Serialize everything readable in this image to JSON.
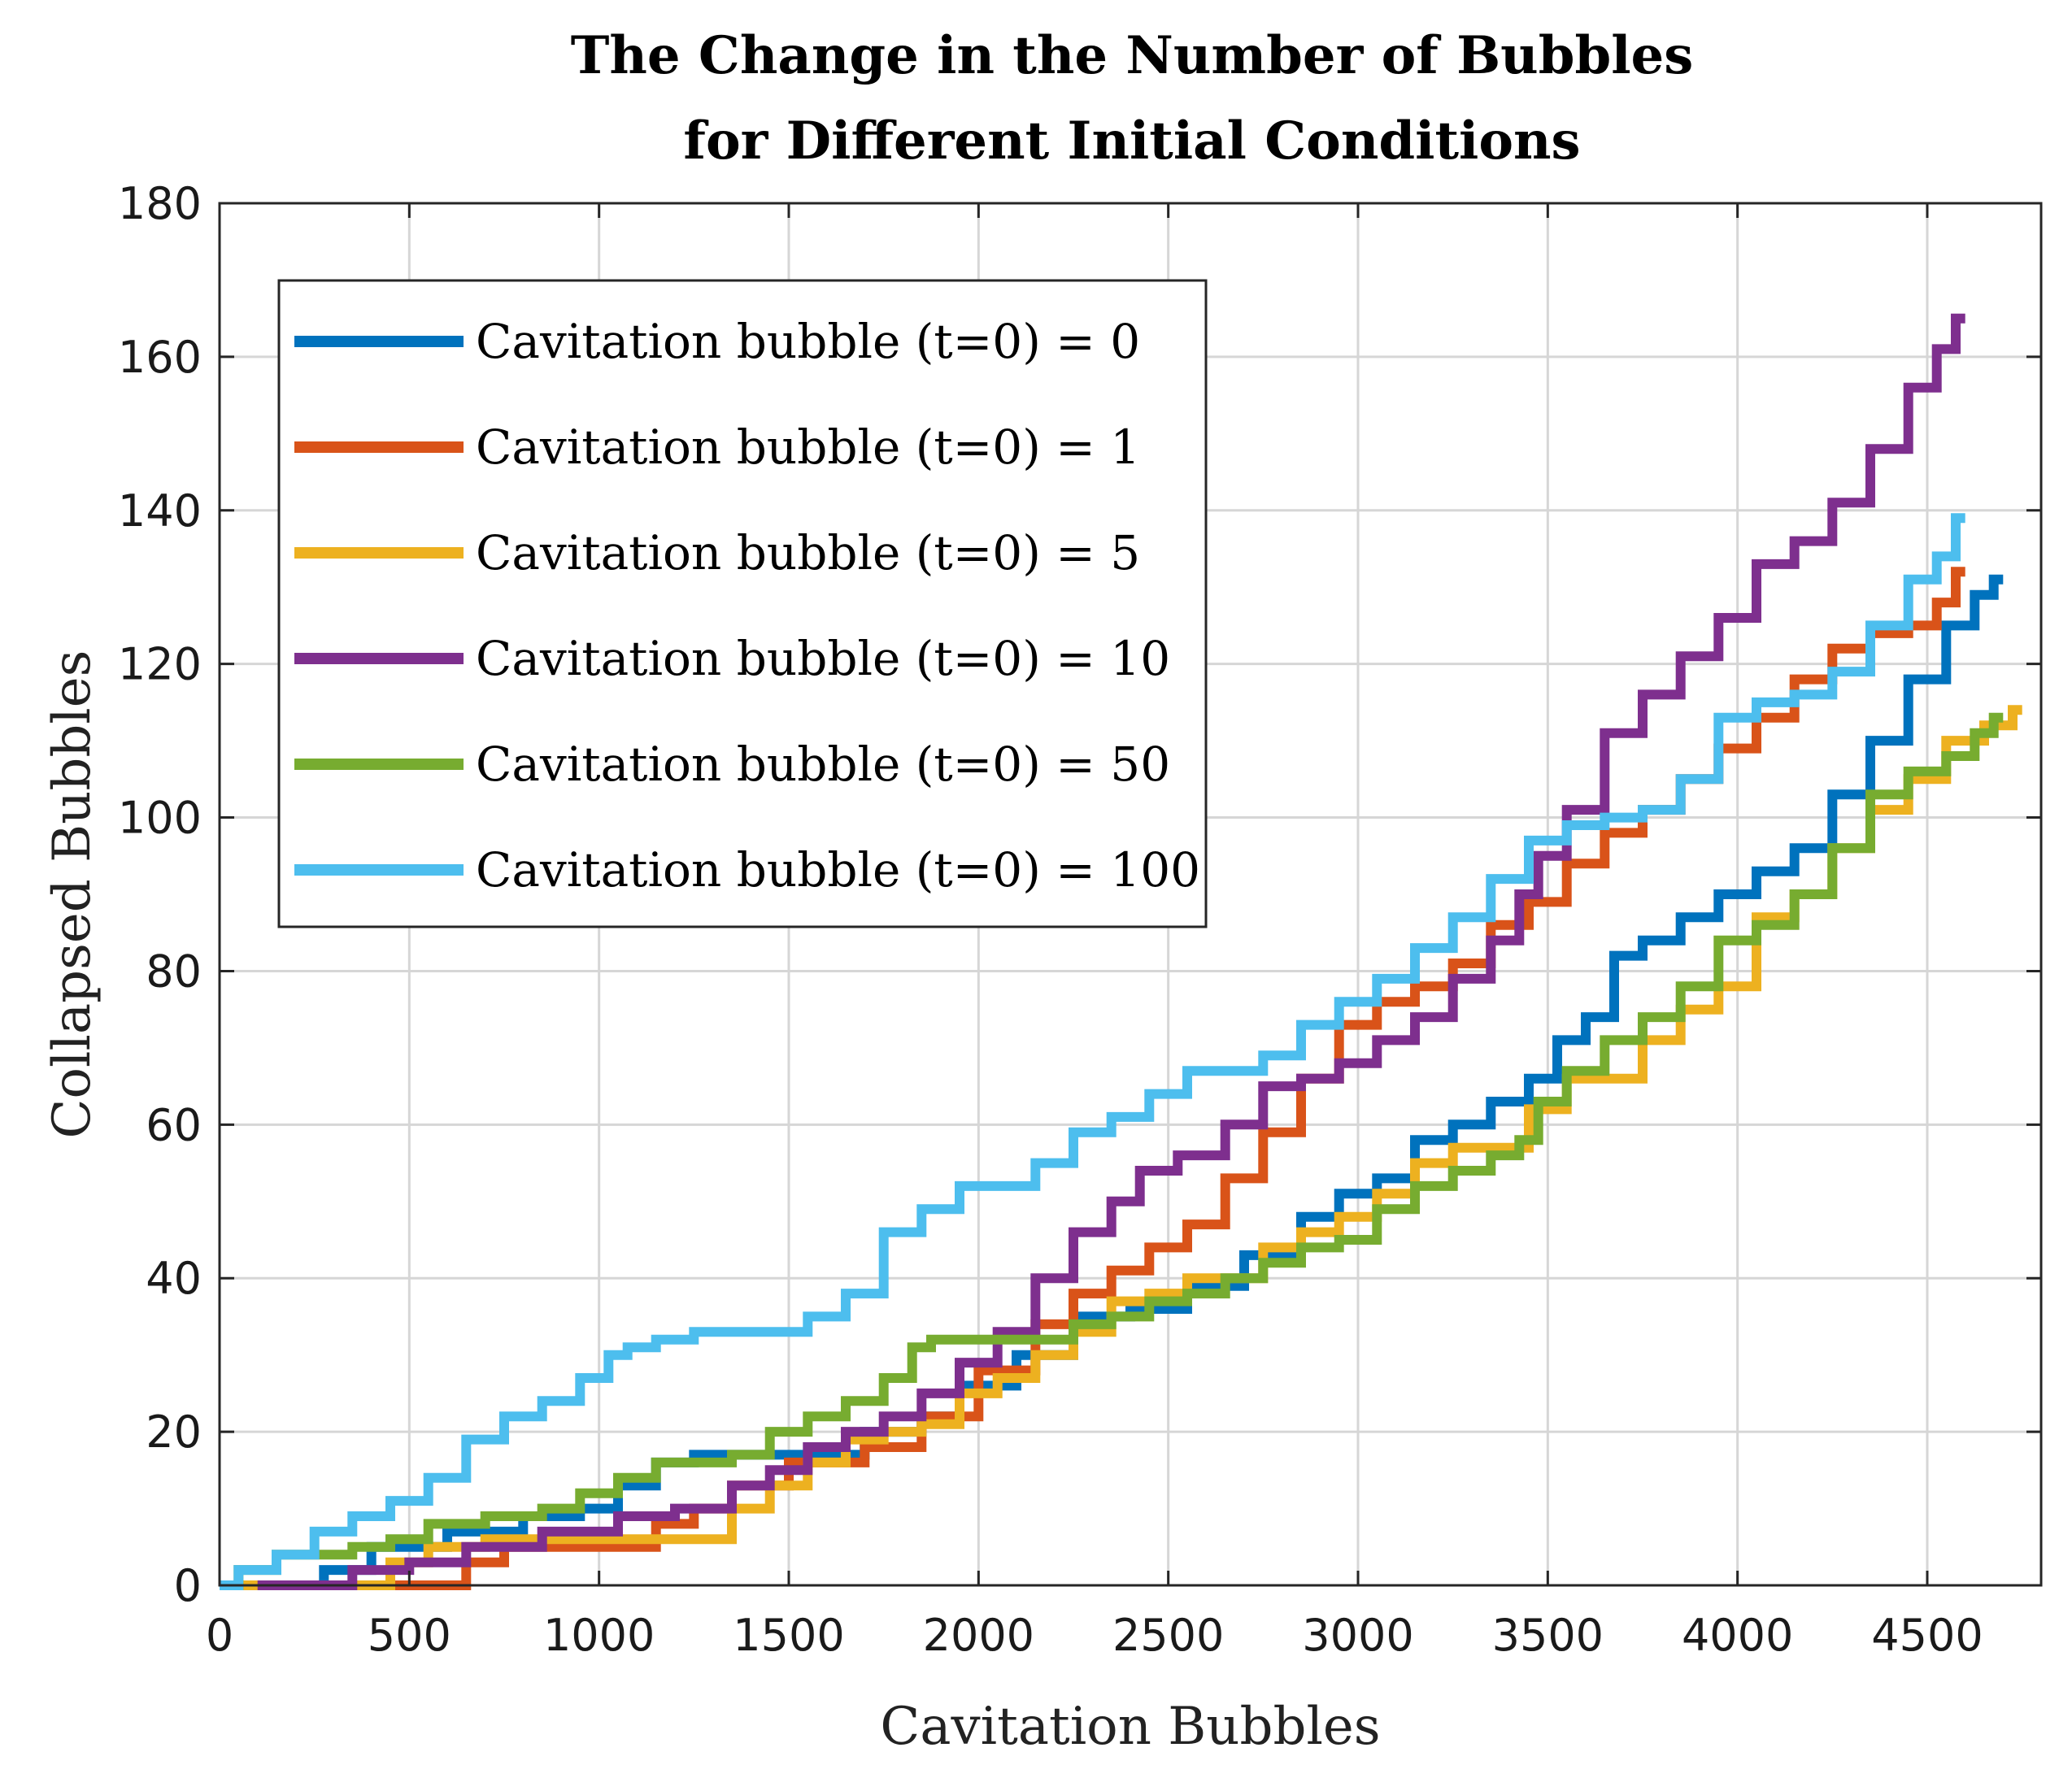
{
  "chart_data": {
    "type": "line",
    "title": "The Change in the Number of Bubbles",
    "subtitle": "for Different Initial Conditions",
    "xlabel": "Cavitation Bubbles",
    "ylabel": "Collapsed Bubbles",
    "xlim": [
      0,
      4800
    ],
    "ylim": [
      0,
      180
    ],
    "xticks": [
      0,
      500,
      1000,
      1500,
      2000,
      2500,
      3000,
      3500,
      4000,
      4500
    ],
    "yticks": [
      0,
      20,
      40,
      60,
      80,
      100,
      120,
      140,
      160,
      180
    ],
    "grid": true,
    "legend_position": "top-left",
    "series": [
      {
        "name": "Cavitation bubble (t=0) = 0",
        "color": "#0072BD",
        "points": [
          [
            0,
            0
          ],
          [
            250,
            0
          ],
          [
            300,
            2
          ],
          [
            500,
            5
          ],
          [
            700,
            7
          ],
          [
            900,
            9
          ],
          [
            1000,
            10
          ],
          [
            1100,
            13
          ],
          [
            1200,
            16
          ],
          [
            1300,
            17
          ],
          [
            1600,
            17
          ],
          [
            1800,
            20
          ],
          [
            1900,
            22
          ],
          [
            2000,
            26
          ],
          [
            2200,
            30
          ],
          [
            2300,
            35
          ],
          [
            2500,
            36
          ],
          [
            2600,
            39
          ],
          [
            2800,
            43
          ],
          [
            2900,
            48
          ],
          [
            3000,
            51
          ],
          [
            3100,
            53
          ],
          [
            3200,
            58
          ],
          [
            3300,
            60
          ],
          [
            3400,
            63
          ],
          [
            3500,
            66
          ],
          [
            3550,
            71
          ],
          [
            3650,
            74
          ],
          [
            3700,
            82
          ],
          [
            3800,
            84
          ],
          [
            3900,
            87
          ],
          [
            4000,
            90
          ],
          [
            4100,
            93
          ],
          [
            4200,
            96
          ],
          [
            4300,
            103
          ],
          [
            4400,
            110
          ],
          [
            4500,
            118
          ],
          [
            4600,
            125
          ],
          [
            4650,
            129
          ],
          [
            4700,
            131
          ]
        ]
      },
      {
        "name": "Cavitation bubble (t=0) = 1",
        "color": "#D95319",
        "points": [
          [
            0,
            0
          ],
          [
            600,
            0
          ],
          [
            700,
            3
          ],
          [
            800,
            5
          ],
          [
            900,
            5
          ],
          [
            1100,
            5
          ],
          [
            1200,
            8
          ],
          [
            1300,
            10
          ],
          [
            1400,
            13
          ],
          [
            1600,
            16
          ],
          [
            1800,
            18
          ],
          [
            1900,
            22
          ],
          [
            2100,
            28
          ],
          [
            2200,
            34
          ],
          [
            2300,
            38
          ],
          [
            2400,
            41
          ],
          [
            2500,
            44
          ],
          [
            2600,
            47
          ],
          [
            2700,
            53
          ],
          [
            2800,
            59
          ],
          [
            2900,
            66
          ],
          [
            3000,
            73
          ],
          [
            3100,
            76
          ],
          [
            3200,
            78
          ],
          [
            3300,
            81
          ],
          [
            3400,
            86
          ],
          [
            3500,
            89
          ],
          [
            3600,
            94
          ],
          [
            3700,
            98
          ],
          [
            3800,
            101
          ],
          [
            3900,
            105
          ],
          [
            4000,
            109
          ],
          [
            4100,
            113
          ],
          [
            4200,
            118
          ],
          [
            4300,
            122
          ],
          [
            4400,
            124
          ],
          [
            4500,
            125
          ],
          [
            4550,
            128
          ],
          [
            4600,
            132
          ]
        ]
      },
      {
        "name": "Cavitation bubble (t=0) = 5",
        "color": "#EDB120",
        "points": [
          [
            0,
            0
          ],
          [
            400,
            0
          ],
          [
            500,
            3
          ],
          [
            600,
            5
          ],
          [
            800,
            6
          ],
          [
            1000,
            6
          ],
          [
            1300,
            6
          ],
          [
            1400,
            10
          ],
          [
            1500,
            13
          ],
          [
            1600,
            16
          ],
          [
            1700,
            19
          ],
          [
            1800,
            20
          ],
          [
            1900,
            21
          ],
          [
            2000,
            25
          ],
          [
            2100,
            27
          ],
          [
            2200,
            30
          ],
          [
            2300,
            33
          ],
          [
            2400,
            37
          ],
          [
            2500,
            38
          ],
          [
            2600,
            40
          ],
          [
            2700,
            40
          ],
          [
            2800,
            44
          ],
          [
            2900,
            46
          ],
          [
            3000,
            48
          ],
          [
            3100,
            51
          ],
          [
            3200,
            55
          ],
          [
            3300,
            57
          ],
          [
            3400,
            57
          ],
          [
            3500,
            62
          ],
          [
            3600,
            66
          ],
          [
            3700,
            66
          ],
          [
            3800,
            71
          ],
          [
            3900,
            75
          ],
          [
            4000,
            78
          ],
          [
            4100,
            87
          ],
          [
            4200,
            90
          ],
          [
            4300,
            96
          ],
          [
            4400,
            101
          ],
          [
            4500,
            105
          ],
          [
            4600,
            110
          ],
          [
            4700,
            112
          ],
          [
            4750,
            114
          ]
        ]
      },
      {
        "name": "Cavitation bubble (t=0) = 10",
        "color": "#7E2F8E",
        "points": [
          [
            100,
            0
          ],
          [
            300,
            0
          ],
          [
            400,
            2
          ],
          [
            600,
            3
          ],
          [
            700,
            5
          ],
          [
            1000,
            7
          ],
          [
            1100,
            9
          ],
          [
            1300,
            10
          ],
          [
            1400,
            13
          ],
          [
            1500,
            15
          ],
          [
            1600,
            18
          ],
          [
            1700,
            20
          ],
          [
            1800,
            22
          ],
          [
            1900,
            25
          ],
          [
            2000,
            29
          ],
          [
            2100,
            33
          ],
          [
            2200,
            40
          ],
          [
            2300,
            46
          ],
          [
            2400,
            50
          ],
          [
            2450,
            54
          ],
          [
            2600,
            56
          ],
          [
            2700,
            60
          ],
          [
            2800,
            65
          ],
          [
            2900,
            66
          ],
          [
            3000,
            68
          ],
          [
            3100,
            71
          ],
          [
            3200,
            74
          ],
          [
            3300,
            79
          ],
          [
            3400,
            84
          ],
          [
            3450,
            90
          ],
          [
            3500,
            95
          ],
          [
            3600,
            101
          ],
          [
            3700,
            111
          ],
          [
            3800,
            116
          ],
          [
            3900,
            121
          ],
          [
            4000,
            126
          ],
          [
            4100,
            133
          ],
          [
            4200,
            136
          ],
          [
            4300,
            141
          ],
          [
            4400,
            148
          ],
          [
            4500,
            156
          ],
          [
            4550,
            161
          ],
          [
            4600,
            165
          ]
        ]
      },
      {
        "name": "Cavitation bubble (t=0) = 50",
        "color": "#77AC30",
        "points": [
          [
            0,
            0
          ],
          [
            100,
            2
          ],
          [
            200,
            4
          ],
          [
            300,
            4
          ],
          [
            400,
            5
          ],
          [
            500,
            6
          ],
          [
            600,
            8
          ],
          [
            800,
            9
          ],
          [
            900,
            10
          ],
          [
            1000,
            12
          ],
          [
            1100,
            14
          ],
          [
            1200,
            16
          ],
          [
            1300,
            16
          ],
          [
            1400,
            17
          ],
          [
            1500,
            20
          ],
          [
            1600,
            22
          ],
          [
            1700,
            24
          ],
          [
            1800,
            27
          ],
          [
            1850,
            31
          ],
          [
            1900,
            32
          ],
          [
            2000,
            32
          ],
          [
            2200,
            32
          ],
          [
            2300,
            34
          ],
          [
            2400,
            35
          ],
          [
            2500,
            37
          ],
          [
            2600,
            38
          ],
          [
            2700,
            40
          ],
          [
            2800,
            42
          ],
          [
            2900,
            44
          ],
          [
            3000,
            45
          ],
          [
            3100,
            49
          ],
          [
            3200,
            52
          ],
          [
            3300,
            54
          ],
          [
            3400,
            56
          ],
          [
            3450,
            58
          ],
          [
            3500,
            63
          ],
          [
            3600,
            67
          ],
          [
            3700,
            71
          ],
          [
            3800,
            74
          ],
          [
            3900,
            78
          ],
          [
            4000,
            84
          ],
          [
            4100,
            86
          ],
          [
            4200,
            90
          ],
          [
            4300,
            96
          ],
          [
            4400,
            103
          ],
          [
            4500,
            106
          ],
          [
            4600,
            108
          ],
          [
            4650,
            111
          ],
          [
            4700,
            113
          ]
        ]
      },
      {
        "name": "Cavitation bubble (t=0) = 100",
        "color": "#4DBEEE",
        "points": [
          [
            0,
            0
          ],
          [
            100,
            2
          ],
          [
            200,
            4
          ],
          [
            300,
            7
          ],
          [
            400,
            9
          ],
          [
            500,
            11
          ],
          [
            600,
            14
          ],
          [
            700,
            19
          ],
          [
            800,
            22
          ],
          [
            900,
            24
          ],
          [
            1000,
            27
          ],
          [
            1050,
            30
          ],
          [
            1100,
            31
          ],
          [
            1200,
            32
          ],
          [
            1300,
            33
          ],
          [
            1500,
            33
          ],
          [
            1600,
            35
          ],
          [
            1700,
            38
          ],
          [
            1800,
            46
          ],
          [
            1900,
            49
          ],
          [
            2000,
            52
          ],
          [
            2100,
            52
          ],
          [
            2200,
            55
          ],
          [
            2300,
            59
          ],
          [
            2400,
            61
          ],
          [
            2500,
            64
          ],
          [
            2600,
            67
          ],
          [
            2700,
            67
          ],
          [
            2800,
            69
          ],
          [
            2900,
            73
          ],
          [
            3000,
            76
          ],
          [
            3100,
            79
          ],
          [
            3200,
            83
          ],
          [
            3300,
            87
          ],
          [
            3400,
            92
          ],
          [
            3500,
            97
          ],
          [
            3600,
            99
          ],
          [
            3700,
            100
          ],
          [
            3800,
            101
          ],
          [
            3900,
            105
          ],
          [
            4000,
            113
          ],
          [
            4100,
            115
          ],
          [
            4200,
            116
          ],
          [
            4300,
            119
          ],
          [
            4400,
            125
          ],
          [
            4500,
            131
          ],
          [
            4550,
            134
          ],
          [
            4600,
            139
          ]
        ]
      }
    ]
  }
}
